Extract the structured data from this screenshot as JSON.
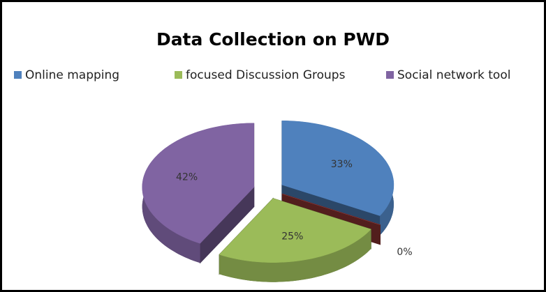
{
  "chart_data": {
    "type": "pie",
    "title": "Data Collection on PWD",
    "categories": [
      "Online mapping",
      null,
      "focused Discussion Groups",
      "Social network tool"
    ],
    "values": [
      33,
      0,
      25,
      42
    ],
    "value_labels": [
      "33%",
      "0%",
      "25%",
      "42%"
    ],
    "colors": [
      "#4f81bd",
      "#953735",
      "#9bbb59",
      "#8064a2"
    ],
    "legend": "top"
  }
}
